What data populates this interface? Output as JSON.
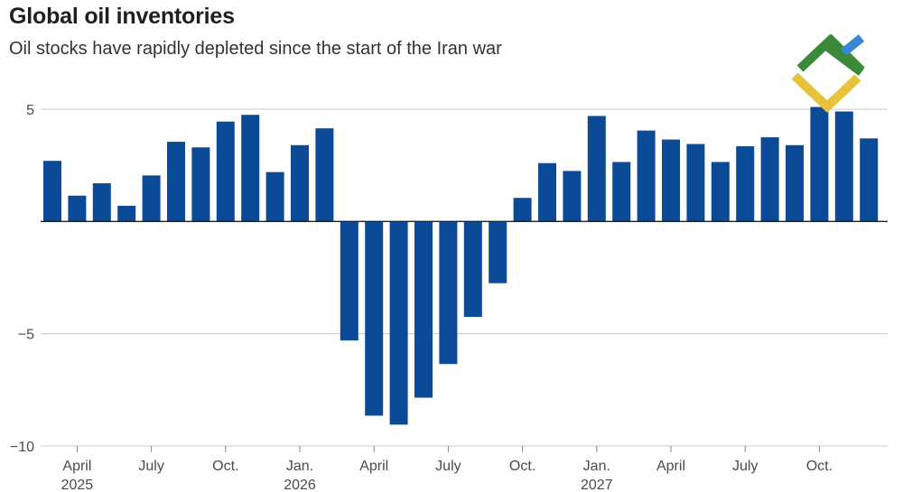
{
  "chart_data": {
    "type": "bar",
    "title": "Global oil inventories",
    "subtitle": "Oil stocks have rapidly depleted since the start of the Iran war",
    "xlabel": "",
    "ylabel": "",
    "ylim": [
      -10,
      5
    ],
    "yticks": [
      5,
      -5,
      -10
    ],
    "yticklabels": [
      "5",
      "−5",
      "−10"
    ],
    "grid": true,
    "bar_color": "#0b4a96",
    "gridline_color": "#c8c8c8",
    "axis_color": "#222222",
    "xtick_labels": [
      {
        "index": 1,
        "line1": "April",
        "line2": "2025"
      },
      {
        "index": 4,
        "line1": "July",
        "line2": ""
      },
      {
        "index": 7,
        "line1": "Oct.",
        "line2": ""
      },
      {
        "index": 10,
        "line1": "Jan.",
        "line2": "2026"
      },
      {
        "index": 13,
        "line1": "April",
        "line2": ""
      },
      {
        "index": 16,
        "line1": "July",
        "line2": ""
      },
      {
        "index": 19,
        "line1": "Oct.",
        "line2": ""
      },
      {
        "index": 22,
        "line1": "Jan.",
        "line2": "2027"
      },
      {
        "index": 25,
        "line1": "April",
        "line2": ""
      },
      {
        "index": 28,
        "line1": "July",
        "line2": ""
      },
      {
        "index": 31,
        "line1": "Oct.",
        "line2": ""
      }
    ],
    "values": [
      2.7,
      1.15,
      1.7,
      0.7,
      2.05,
      3.55,
      3.3,
      4.45,
      4.75,
      2.2,
      3.4,
      4.15,
      -5.3,
      -8.65,
      -9.05,
      -7.85,
      -6.35,
      -4.25,
      -2.75,
      1.05,
      2.6,
      2.25,
      4.7,
      2.65,
      4.05,
      3.65,
      3.45,
      2.65,
      3.35,
      3.75,
      3.4,
      5.1,
      4.9,
      3.7
    ]
  },
  "logo": {
    "name": "brand-logo",
    "colors": [
      "#3a8a3a",
      "#e8c23a",
      "#3a87d6"
    ]
  }
}
